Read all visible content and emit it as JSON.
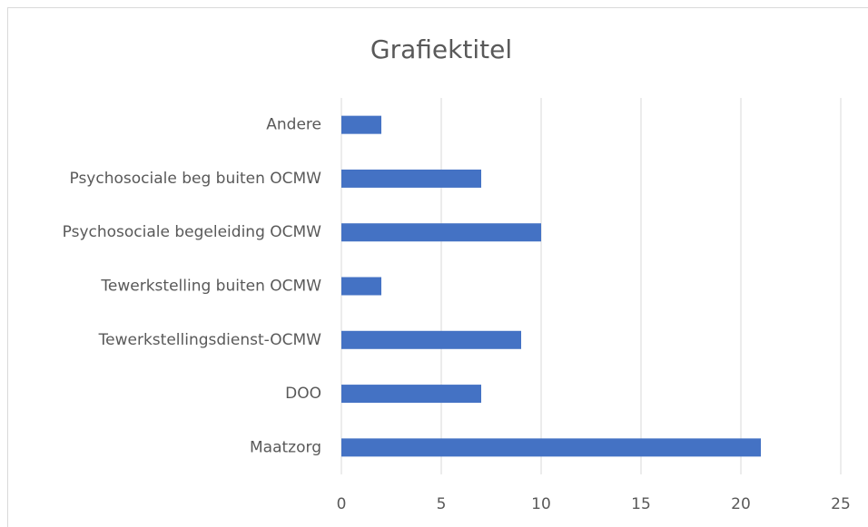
{
  "chart_data": {
    "type": "bar",
    "orientation": "horizontal",
    "title": "Grafiektitel",
    "categories": [
      "Andere",
      "Psychosociale beg buiten OCMW",
      "Psychosociale begeleiding OCMW",
      "Tewerkstelling buiten OCMW",
      "Tewerkstellingsdienst-OCMW",
      "DOO",
      "Maatzorg"
    ],
    "values": [
      2,
      7,
      10,
      2,
      9,
      7,
      21
    ],
    "color": "#4472c4",
    "xlim": [
      0,
      25
    ],
    "xticks": [
      0,
      5,
      10,
      15,
      20,
      25
    ],
    "grid": true
  }
}
